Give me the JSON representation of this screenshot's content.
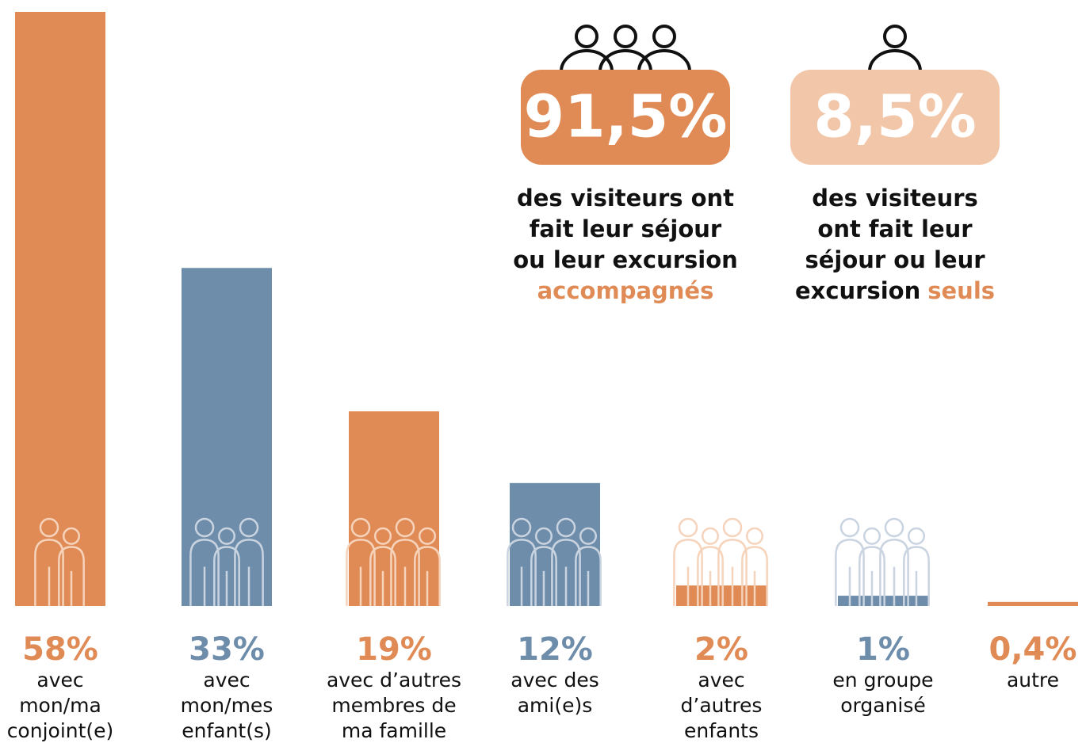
{
  "chart_data": {
    "type": "bar",
    "categories": [
      [
        "avec",
        "mon/ma",
        "conjoint(e)"
      ],
      [
        "avec",
        "mon/mes",
        "enfant(s)"
      ],
      [
        "avec d’autres",
        "membres de",
        "ma famille"
      ],
      [
        "avec des",
        "ami(e)s"
      ],
      [
        "avec",
        "d’autres",
        "enfants"
      ],
      [
        "en groupe",
        "organisé"
      ],
      [
        "autre"
      ]
    ],
    "values": [
      58,
      33,
      19,
      12,
      2,
      1,
      0.4
    ],
    "value_labels": [
      "58%",
      "33%",
      "19%",
      "12%",
      "2%",
      "1%",
      "0,4%"
    ],
    "colors": [
      "#e08b55",
      "#6e8dab",
      "#e08b55",
      "#6e8dab",
      "#e08b55",
      "#6e8dab",
      "#e08b55"
    ],
    "ylim": [
      0,
      58
    ],
    "callouts": [
      {
        "value": 91.5,
        "label": "91,5%",
        "color": "#e08b55",
        "lines": [
          [
            {
              "text": "des visiteurs ont"
            }
          ],
          [
            {
              "text": "fait leur séjour"
            }
          ],
          [
            {
              "text": "ou leur excursion"
            }
          ],
          [
            {
              "text": "accompagnés",
              "color": "#e08b55"
            }
          ]
        ]
      },
      {
        "value": 8.5,
        "label": "8,5%",
        "color": "#f2c6a8",
        "lines": [
          [
            {
              "text": "des visiteurs"
            }
          ],
          [
            {
              "text": "ont fait leur"
            }
          ],
          [
            {
              "text": "séjour ou leur"
            }
          ],
          [
            {
              "text": "excursion"
            },
            {
              "text": "seuls",
              "color": "#e08b55"
            }
          ]
        ]
      }
    ]
  }
}
